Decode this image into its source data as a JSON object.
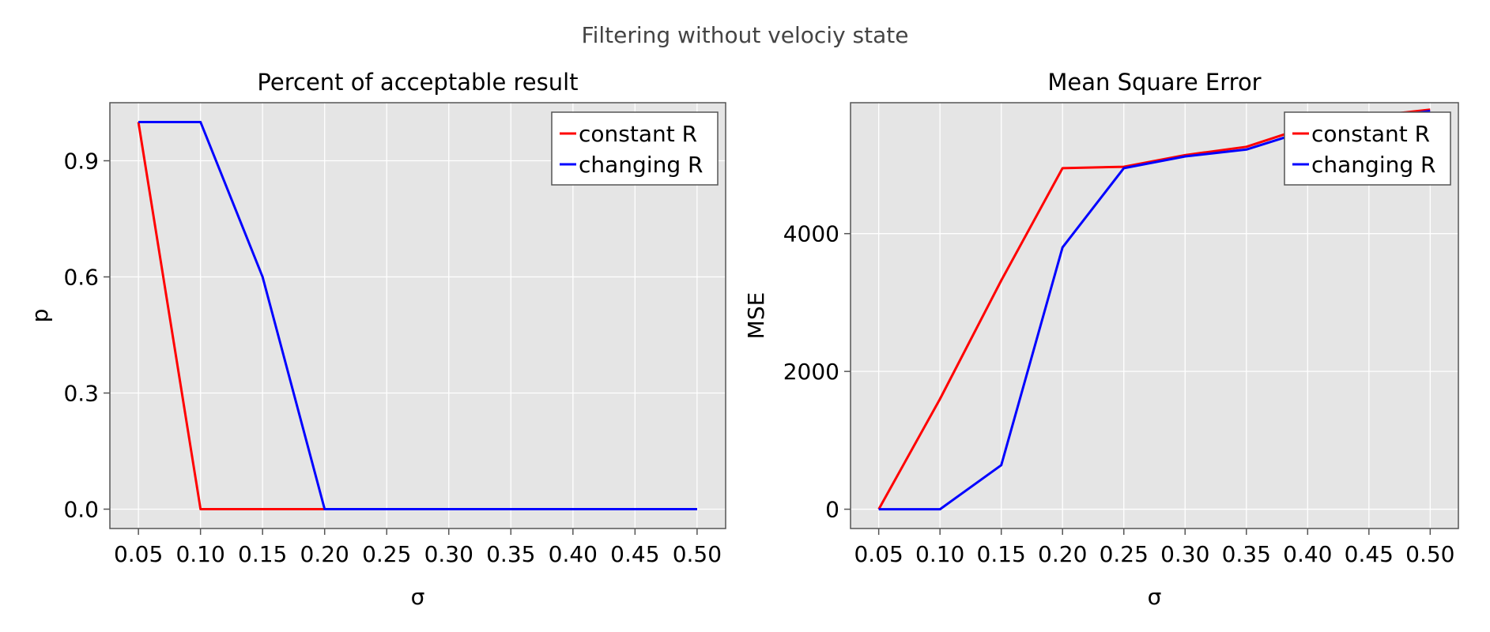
{
  "figure": {
    "suptitle": "Filtering without velociy state"
  },
  "chart_data": [
    {
      "type": "line",
      "title": "Percent of acceptable result",
      "xlabel": "σ",
      "ylabel": "p",
      "x": [
        0.05,
        0.1,
        0.15,
        0.2,
        0.25,
        0.3,
        0.35,
        0.4,
        0.45,
        0.5
      ],
      "xtick_labels": [
        "0.05",
        "0.10",
        "0.15",
        "0.20",
        "0.25",
        "0.30",
        "0.35",
        "0.40",
        "0.45",
        "0.50"
      ],
      "ytick_values": [
        0.0,
        0.3,
        0.6,
        0.9
      ],
      "ytick_labels": [
        "0.0",
        "0.3",
        "0.6",
        "0.9"
      ],
      "xlim": [
        0.027,
        0.523
      ],
      "ylim": [
        -0.05,
        1.05
      ],
      "grid": true,
      "legend_position": "top-right",
      "series": [
        {
          "name": "constant R",
          "color": "#ff0000",
          "values": [
            1.0,
            0.0,
            0.0,
            0.0,
            0.0,
            0.0,
            0.0,
            0.0,
            0.0,
            0.0
          ]
        },
        {
          "name": "changing R",
          "color": "#0000ff",
          "values": [
            1.0,
            1.0,
            0.6,
            0.0,
            0.0,
            0.0,
            0.0,
            0.0,
            0.0,
            0.0
          ]
        }
      ]
    },
    {
      "type": "line",
      "title": "Mean Square Error",
      "xlabel": "σ",
      "ylabel": "MSE",
      "x": [
        0.05,
        0.1,
        0.15,
        0.2,
        0.25,
        0.3,
        0.35,
        0.4,
        0.45,
        0.5
      ],
      "xtick_labels": [
        "0.05",
        "0.10",
        "0.15",
        "0.20",
        "0.25",
        "0.30",
        "0.35",
        "0.40",
        "0.45",
        "0.50"
      ],
      "ytick_values": [
        0,
        2000,
        4000
      ],
      "ytick_labels": [
        "0",
        "2000",
        "4000"
      ],
      "xlim": [
        0.027,
        0.523
      ],
      "ylim": [
        -280,
        5900
      ],
      "grid": true,
      "legend_position": "top-right",
      "series": [
        {
          "name": "constant R",
          "color": "#ff0000",
          "values": [
            0,
            1600,
            3320,
            4950,
            4970,
            5140,
            5260,
            5550,
            5700,
            5800
          ]
        },
        {
          "name": "changing R",
          "color": "#0000ff",
          "values": [
            0,
            0,
            640,
            3800,
            4950,
            5120,
            5220,
            5500,
            5650,
            5780
          ]
        }
      ]
    }
  ]
}
